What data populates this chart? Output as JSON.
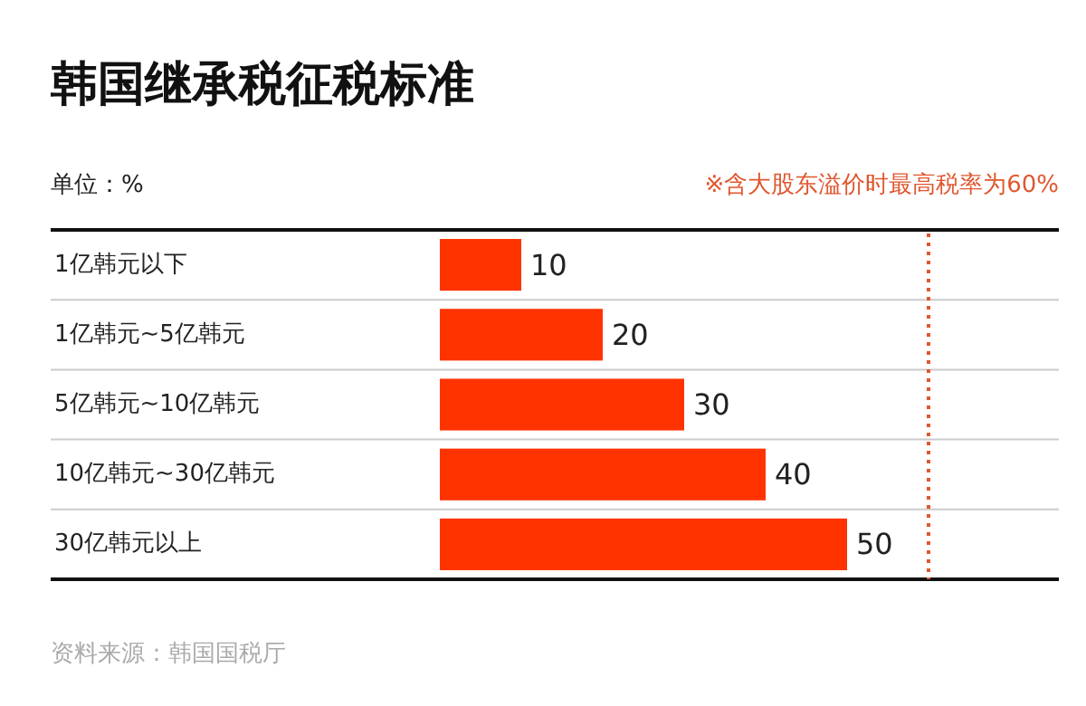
{
  "chart_data": {
    "type": "bar",
    "orientation": "horizontal",
    "title": "韩国继承税征税标准",
    "subtitle": "单位：%",
    "categories": [
      "1亿韩元以下",
      "1亿韩元~5亿韩元",
      "5亿韩元~10亿韩元",
      "10亿韩元~30亿韩元",
      "30亿韩元以上"
    ],
    "values": [
      10,
      20,
      30,
      40,
      50
    ],
    "color": "#ff3300",
    "data_labels": true,
    "xlim": [
      0,
      76
    ],
    "tick_labels": "y",
    "grid": "y",
    "ref_lines": [
      {
        "axis": "x",
        "value": 60,
        "label": "※含大股东溢价时最高税率为60%",
        "color": "#e0572e",
        "line_style": "dotted"
      }
    ],
    "annotations": [
      "资料来源：韩国国税厅"
    ]
  }
}
